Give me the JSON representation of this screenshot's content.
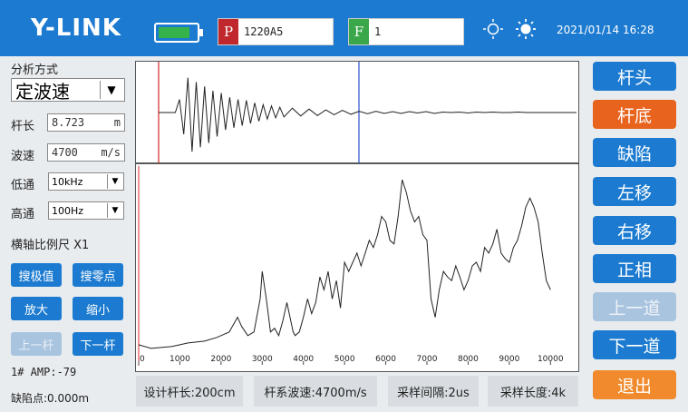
{
  "header": {
    "logo": "Y-LINK",
    "battery_level": 0.85,
    "p_tag": "P",
    "p_value": "1220A5",
    "f_tag": "F",
    "f_value": "1",
    "datetime": "2021/01/14 16:28",
    "colors": {
      "bar": "#1c7bd0",
      "p_tag": "#c0282d",
      "f_tag": "#3aa84a"
    }
  },
  "left": {
    "analysis_label": "分析方式",
    "analysis_value": "定波速",
    "pile_length_label": "杆长",
    "pile_length_value": "8.723",
    "pile_length_unit": "m",
    "wave_speed_label": "波速",
    "wave_speed_value": "4700",
    "wave_speed_unit": "m/s",
    "lowpass_label": "低通",
    "lowpass_value": "10kHz",
    "highpass_label": "高通",
    "highpass_value": "100Hz",
    "scale_label": "横轴比例尺  X1",
    "btn_search_peak": "搜极值",
    "btn_search_zero": "搜零点",
    "btn_zoom_in": "放大",
    "btn_zoom_out": "缩小",
    "btn_prev_pile": "上一杆",
    "btn_next_pile": "下一杆",
    "amp_text": "1#  AMP:-79",
    "defect_text": "缺陷点:0.000m"
  },
  "right": {
    "btn_pile_head": "杆头",
    "btn_pile_bottom": "杆底",
    "btn_defect": "缺陷",
    "btn_move_left": "左移",
    "btn_move_right": "右移",
    "btn_positive_phase": "正相",
    "btn_prev_channel": "上一道",
    "btn_next_channel": "下一道",
    "btn_exit": "退出"
  },
  "bottom": {
    "design_length": "设计杆长:200cm",
    "wave_speed": "杆系波速:4700m/s",
    "sample_interval": "采样间隔:2us",
    "sample_length": "采样长度:4k"
  },
  "chart_data": [
    {
      "type": "line",
      "series": [
        {
          "x": [
            0,
            0.02,
            0.04,
            0.05,
            0.06,
            0.07,
            0.08,
            0.09,
            0.1,
            0.11,
            0.12,
            0.13,
            0.14,
            0.15,
            0.16,
            0.17,
            0.18,
            0.19,
            0.2,
            0.21,
            0.22,
            0.23,
            0.24,
            0.25,
            0.26,
            0.27,
            0.28,
            0.29,
            0.3,
            0.32,
            0.34,
            0.36,
            0.38,
            0.4,
            0.42,
            0.44,
            0.46,
            0.48,
            0.5,
            0.52,
            0.54,
            0.56,
            0.58,
            0.6,
            0.62,
            0.64,
            0.66,
            0.68,
            0.7,
            0.72,
            0.74,
            0.76,
            0.78,
            0.8,
            0.82,
            0.84,
            0.86,
            0.88,
            0.9,
            0.92,
            0.94,
            0.96,
            0.98,
            1.0
          ],
          "y": [
            0,
            0,
            0,
            0.3,
            -0.5,
            0.8,
            -0.9,
            0.7,
            -0.8,
            0.6,
            -0.7,
            0.5,
            -0.55,
            0.45,
            -0.4,
            0.35,
            -0.35,
            0.3,
            -0.3,
            0.28,
            -0.25,
            0.22,
            -0.2,
            0.18,
            -0.15,
            0.15,
            -0.12,
            0.12,
            -0.1,
            0.1,
            -0.08,
            0.08,
            -0.07,
            0.06,
            -0.05,
            0.05,
            -0.04,
            0.03,
            -0.03,
            0.03,
            -0.02,
            0.02,
            -0.02,
            0.02,
            -0.01,
            0.02,
            -0.02,
            0.01,
            0,
            0.01,
            -0.01,
            0.01,
            0,
            0.01,
            0,
            0,
            0.01,
            0,
            0,
            0,
            0,
            0,
            0,
            0
          ]
        }
      ]
    },
    {
      "type": "line",
      "x_ticks": [
        0,
        1000,
        2000,
        3000,
        4000,
        5000,
        6000,
        7000,
        8000,
        9000,
        10000
      ],
      "xlim": [
        0,
        10500
      ],
      "series": [
        {
          "x": [
            0,
            300,
            800,
            1200,
            1600,
            1900,
            2200,
            2400,
            2500,
            2650,
            2800,
            2950,
            3000,
            3100,
            3200,
            3300,
            3400,
            3500,
            3600,
            3750,
            3800,
            3900,
            4000,
            4100,
            4200,
            4300,
            4400,
            4500,
            4600,
            4700,
            4800,
            4900,
            5000,
            5100,
            5200,
            5300,
            5400,
            5500,
            5600,
            5700,
            5800,
            5900,
            6000,
            6100,
            6200,
            6300,
            6400,
            6500,
            6600,
            6700,
            6800,
            6900,
            7000,
            7100,
            7200,
            7300,
            7400,
            7500,
            7600,
            7700,
            7800,
            7900,
            8000,
            8100,
            8200,
            8300,
            8400,
            8500,
            8600,
            8700,
            8800,
            8900,
            9000,
            9100,
            9200,
            9300,
            9400,
            9500,
            9600,
            9700,
            9800,
            9900,
            10000
          ],
          "y": [
            0.05,
            0.03,
            0.04,
            0.06,
            0.07,
            0.09,
            0.12,
            0.2,
            0.15,
            0.1,
            0.12,
            0.3,
            0.45,
            0.3,
            0.12,
            0.14,
            0.1,
            0.18,
            0.28,
            0.12,
            0.1,
            0.12,
            0.2,
            0.3,
            0.22,
            0.28,
            0.42,
            0.35,
            0.45,
            0.3,
            0.4,
            0.25,
            0.5,
            0.45,
            0.5,
            0.55,
            0.48,
            0.55,
            0.62,
            0.58,
            0.65,
            0.75,
            0.72,
            0.62,
            0.6,
            0.75,
            0.95,
            0.88,
            0.78,
            0.72,
            0.75,
            0.65,
            0.62,
            0.3,
            0.2,
            0.35,
            0.45,
            0.42,
            0.4,
            0.48,
            0.42,
            0.35,
            0.4,
            0.48,
            0.5,
            0.45,
            0.58,
            0.55,
            0.6,
            0.68,
            0.55,
            0.52,
            0.5,
            0.58,
            0.62,
            0.7,
            0.8,
            0.85,
            0.8,
            0.72,
            0.55,
            0.4,
            0.35
          ]
        }
      ]
    }
  ]
}
